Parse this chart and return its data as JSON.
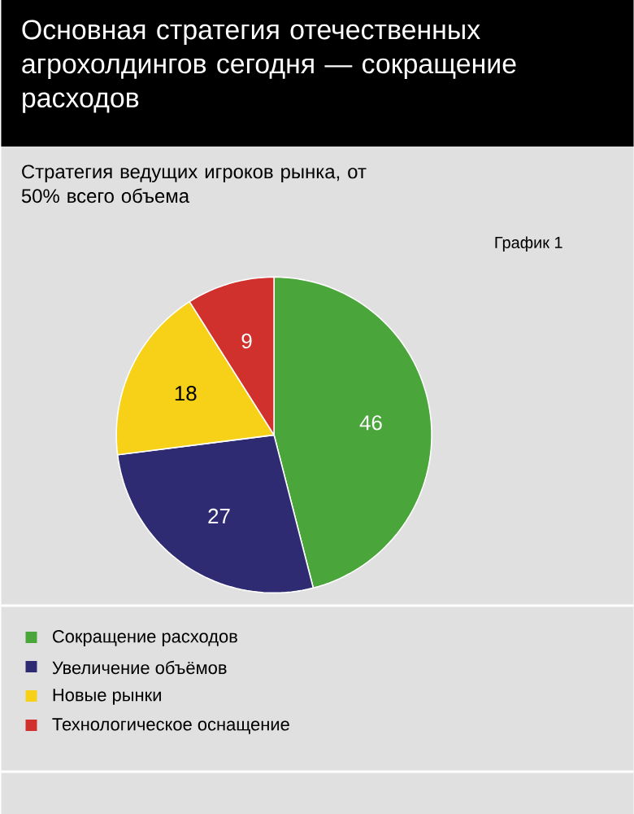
{
  "chart_data": {
    "type": "pie",
    "title": "Основная стратегия отечественных агрохолдингов сегодня — сокращение расходов",
    "subtitle": "Стратегия ведущих игроков рынка, от 50% всего объема",
    "annotations": [
      "График 1"
    ],
    "categories": [
      "Сокращение расходов",
      "Увеличение объёмов",
      "Новые рынки",
      "Технологическое оснащение"
    ],
    "values": [
      46,
      27,
      18,
      9
    ],
    "colors": [
      "#4aa53a",
      "#2f2b72",
      "#f7d117",
      "#d0312d"
    ],
    "data_labels": true,
    "legend": "bottom"
  }
}
